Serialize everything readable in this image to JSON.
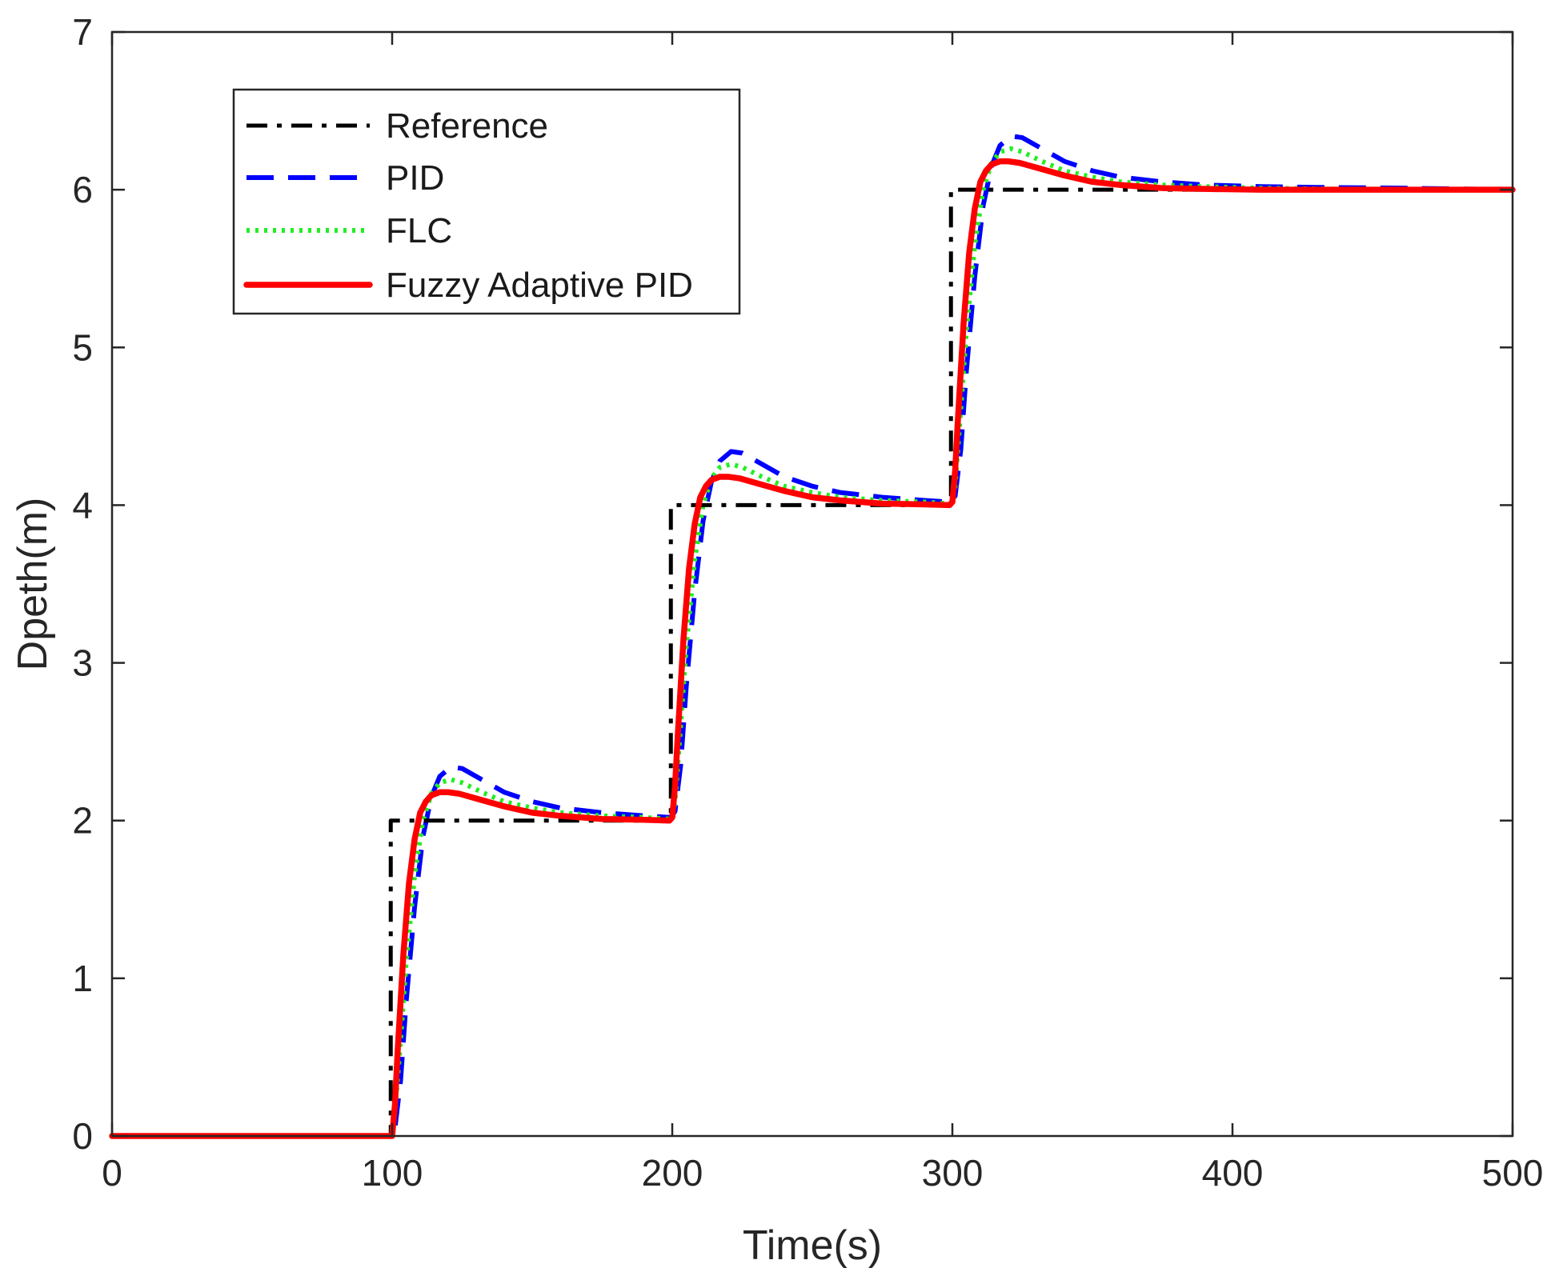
{
  "chart_data": {
    "type": "line",
    "title": "",
    "xlabel": "Time(s)",
    "ylabel": "Dpeth(m)",
    "xlim": [
      0,
      500
    ],
    "ylim": [
      0,
      7
    ],
    "xticks": [
      "0",
      "100",
      "200",
      "300",
      "400",
      "500"
    ],
    "yticks": [
      "0",
      "1",
      "2",
      "3",
      "4",
      "5",
      "6",
      "7"
    ],
    "grid": false,
    "legend_position": "top-left",
    "series": [
      {
        "name": "Reference",
        "color": "#000000",
        "style": "dashdot",
        "x": [
          0,
          99.5,
          99.5,
          199.5,
          199.5,
          299.5,
          299.5,
          500
        ],
        "y": [
          0,
          0,
          2,
          2,
          4,
          4,
          6,
          6
        ]
      },
      {
        "name": "PID",
        "color": "#0000ff",
        "style": "dashed",
        "x": [
          0,
          100,
          101,
          103,
          105,
          108,
          111,
          114,
          117,
          121,
          125,
          132,
          140,
          150,
          160,
          175,
          190,
          199,
          200,
          201,
          203,
          205,
          208,
          211,
          214,
          217,
          221,
          225,
          232,
          240,
          250,
          260,
          275,
          290,
          299,
          300,
          301,
          303,
          305,
          308,
          311,
          314,
          317,
          321,
          325,
          332,
          340,
          350,
          360,
          375,
          390,
          410,
          430,
          460,
          500
        ],
        "y": [
          0,
          0,
          0.05,
          0.35,
          0.85,
          1.45,
          1.9,
          2.15,
          2.28,
          2.34,
          2.33,
          2.26,
          2.18,
          2.12,
          2.08,
          2.05,
          2.03,
          2.02,
          2.03,
          2.06,
          2.35,
          2.85,
          3.45,
          3.9,
          4.15,
          4.28,
          4.34,
          4.33,
          4.26,
          4.18,
          4.12,
          4.08,
          4.05,
          4.03,
          4.02,
          4.03,
          4.06,
          4.35,
          4.85,
          5.45,
          5.9,
          6.15,
          6.28,
          6.34,
          6.33,
          6.26,
          6.18,
          6.12,
          6.08,
          6.05,
          6.03,
          6.02,
          6.015,
          6.01,
          6.0
        ]
      },
      {
        "name": "FLC",
        "color": "#22ee22",
        "style": "dotted",
        "x": [
          0,
          100,
          101,
          103,
          105,
          108,
          111,
          114,
          117,
          121,
          125,
          132,
          140,
          150,
          160,
          175,
          190,
          199,
          200,
          201,
          203,
          205,
          208,
          211,
          214,
          217,
          221,
          225,
          232,
          240,
          250,
          260,
          275,
          290,
          299,
          300,
          301,
          303,
          305,
          308,
          311,
          314,
          317,
          321,
          325,
          332,
          340,
          350,
          360,
          375,
          390,
          410,
          430,
          460,
          500
        ],
        "y": [
          0,
          0,
          0.15,
          0.6,
          1.1,
          1.65,
          2.0,
          2.17,
          2.24,
          2.26,
          2.24,
          2.18,
          2.12,
          2.08,
          2.05,
          2.03,
          2.02,
          2.01,
          2.02,
          2.12,
          2.6,
          3.1,
          3.65,
          4.0,
          4.17,
          4.24,
          4.26,
          4.24,
          4.18,
          4.12,
          4.08,
          4.05,
          4.03,
          4.02,
          4.01,
          4.02,
          4.12,
          4.6,
          5.1,
          5.65,
          6.0,
          6.17,
          6.24,
          6.26,
          6.24,
          6.18,
          6.12,
          6.08,
          6.05,
          6.03,
          6.02,
          6.01,
          6.005,
          6.0,
          6.0
        ]
      },
      {
        "name": "Fuzzy Adaptive PID",
        "color": "#ff0000",
        "style": "solid",
        "x": [
          0,
          100,
          101,
          102,
          104,
          106,
          108,
          110,
          112,
          114,
          117,
          120,
          124,
          130,
          140,
          150,
          160,
          175,
          190,
          199,
          200,
          201,
          202,
          204,
          206,
          208,
          210,
          212,
          214,
          217,
          220,
          224,
          230,
          240,
          250,
          260,
          275,
          290,
          299,
          300,
          301,
          302,
          304,
          306,
          308,
          310,
          312,
          314,
          317,
          320,
          324,
          330,
          340,
          350,
          360,
          375,
          390,
          410,
          430,
          460,
          500
        ],
        "y": [
          0,
          0,
          0.2,
          0.55,
          1.15,
          1.6,
          1.88,
          2.05,
          2.12,
          2.16,
          2.18,
          2.18,
          2.17,
          2.14,
          2.09,
          2.05,
          2.03,
          2.01,
          2.005,
          2.0,
          2.02,
          2.22,
          2.55,
          3.15,
          3.6,
          3.88,
          4.05,
          4.12,
          4.16,
          4.18,
          4.18,
          4.17,
          4.14,
          4.09,
          4.05,
          4.03,
          4.01,
          4.005,
          4.0,
          4.02,
          4.22,
          4.55,
          5.15,
          5.6,
          5.88,
          6.05,
          6.12,
          6.16,
          6.18,
          6.18,
          6.17,
          6.14,
          6.09,
          6.05,
          6.03,
          6.01,
          6.005,
          6.0,
          6.0,
          6.0,
          6.0
        ]
      }
    ]
  }
}
